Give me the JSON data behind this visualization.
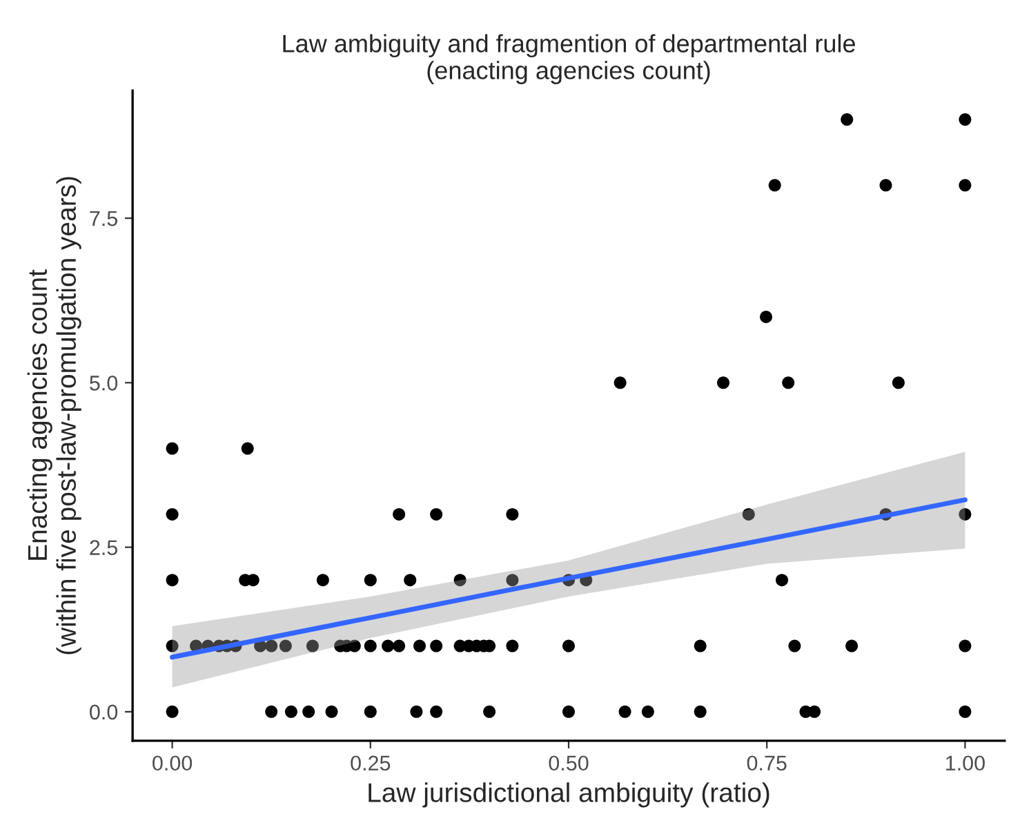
{
  "chart_data": {
    "type": "scatter",
    "title": "Law ambiguity and fragmention of departmental rule\n(enacting agencies count)",
    "xlabel": "Law jurisdictional ambiguity (ratio)",
    "ylabel": "Enacting agencies count\n(within five post-law-promulgation years)",
    "xlim": [
      -0.05,
      1.05
    ],
    "ylim": [
      -0.44,
      9.44
    ],
    "xticks": [
      {
        "value": 0,
        "label": "0.00"
      },
      {
        "value": 0.25,
        "label": "0.25"
      },
      {
        "value": 0.5,
        "label": "0.50"
      },
      {
        "value": 0.75,
        "label": "0.75"
      },
      {
        "value": 1,
        "label": "1.00"
      }
    ],
    "yticks": [
      {
        "value": 0,
        "label": "0.0"
      },
      {
        "value": 2.5,
        "label": "2.5"
      },
      {
        "value": 5,
        "label": "5.0"
      },
      {
        "value": 7.5,
        "label": "7.5"
      }
    ],
    "grid": false,
    "series": [
      {
        "color": "#000000",
        "marker": "circle",
        "x": [
          0.851,
          1.0,
          0.76,
          0.9,
          1.0,
          0.749,
          0.565,
          0.695,
          0.777,
          0.916,
          0,
          0.095,
          0,
          0.286,
          0.333,
          0.429,
          0.727,
          0.9,
          1.0,
          0,
          0.092,
          0.102,
          0.19,
          0.25,
          0.3,
          0.363,
          0.429,
          0.5,
          0.522,
          0.769,
          0,
          0.03,
          0.045,
          0.059,
          0.069,
          0.08,
          0.111,
          0.125,
          0.143,
          0.177,
          0.212,
          0.22,
          0.23,
          0.25,
          0.272,
          0.286,
          0.312,
          0.333,
          0.363,
          0.374,
          0.384,
          0.393,
          0.4,
          0.429,
          0.5,
          0.666,
          0.785,
          0.857,
          1.0,
          0,
          0.125,
          0.15,
          0.172,
          0.201,
          0.25,
          0.308,
          0.333,
          0.4,
          0.5,
          0.571,
          0.6,
          0.666,
          0.799,
          0.81,
          1.0
        ],
        "values": [
          9,
          9,
          8,
          8,
          8,
          6,
          5,
          5,
          5,
          5,
          4,
          4,
          3,
          3,
          3,
          3,
          3,
          3,
          3,
          2,
          2,
          2,
          2,
          2,
          2,
          2,
          2,
          2,
          2,
          2,
          1,
          1,
          1,
          1,
          1,
          1,
          1,
          1,
          1,
          1,
          1,
          1,
          1,
          1,
          1,
          1,
          1,
          1,
          1,
          1,
          1,
          1,
          1,
          1,
          1,
          1,
          1,
          1,
          1,
          0,
          0,
          0,
          0,
          0,
          0,
          0,
          0,
          0,
          0,
          0,
          0,
          0,
          0,
          0,
          0
        ]
      },
      {
        "type": "line",
        "color": "#3366ff",
        "x": [
          0,
          0.25,
          0.5,
          0.75,
          1.0
        ],
        "values": [
          0.83,
          1.43,
          2.03,
          2.62,
          3.22
        ],
        "lower": [
          0.37,
          1.12,
          1.75,
          2.25,
          2.48
        ],
        "upper": [
          1.3,
          1.75,
          2.3,
          3.15,
          3.95
        ]
      }
    ]
  }
}
